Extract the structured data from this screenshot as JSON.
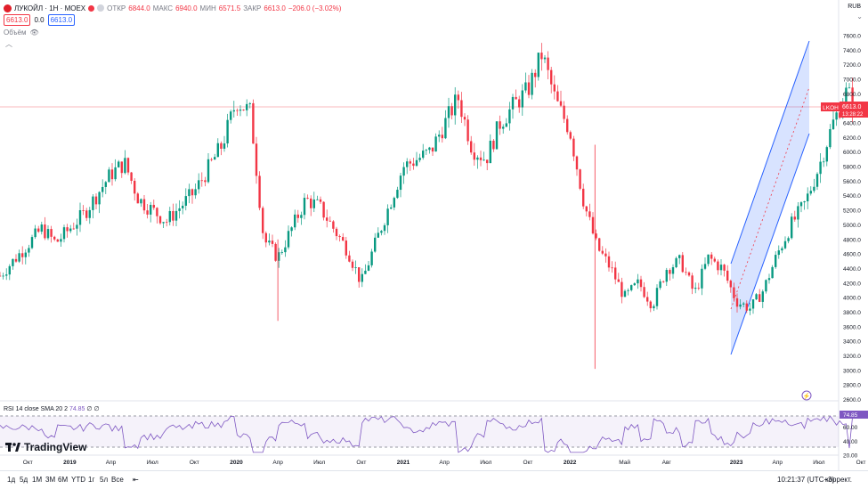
{
  "header": {
    "symbol": "ЛУКОЙЛ · 1Н · MOEX",
    "open_label": "ОТКР",
    "open_value": "6844.0",
    "high_label": "МАКС",
    "high_value": "6940.0",
    "low_label": "МИН",
    "low_value": "6571.5",
    "close_label": "ЗАКР",
    "close_value": "6613.0",
    "change": "−206.0 (−3.02%)",
    "sell_price": "6613.0",
    "spread": "0.0",
    "buy_price": "6613.0",
    "volume_label": "Объём",
    "currency": "RUB"
  },
  "rsi": {
    "label": "RSI 14 close SMA 20 2",
    "value": "74.85",
    "extra": "∅ ∅"
  },
  "brand": {
    "name": "TradingView"
  },
  "toolbar": {
    "ranges": [
      "1д",
      "5д",
      "1М",
      "3М",
      "6М",
      "YTD",
      "1г",
      "5л",
      "Все"
    ],
    "time": "10:21:37 (UTC+3)",
    "adjust": "коррект."
  },
  "chart_data": [
    {
      "type": "candlestick",
      "title": "ЛУКОЙЛ · 1Н · MOEX",
      "ylabel": "RUB",
      "ylim": [
        2600,
        7800
      ],
      "y_ticks": [
        "2600.0",
        "2800.0",
        "3000.0",
        "3200.0",
        "3400.0",
        "3600.0",
        "3800.0",
        "4000.0",
        "4200.0",
        "4400.0",
        "4600.0",
        "4800.0",
        "5000.0",
        "5200.0",
        "5400.0",
        "5600.0",
        "5800.0",
        "6000.0",
        "6200.0",
        "6400.0",
        "6600.0",
        "6800.0",
        "7000.0",
        "7200.0",
        "7400.0",
        "7600.0"
      ],
      "x_ticks": [
        "Окт",
        "2019",
        "Апр",
        "Июл",
        "Окт",
        "2020",
        "Апр",
        "Июл",
        "Окт",
        "2021",
        "Апр",
        "Июл",
        "Окт",
        "2022",
        "Май",
        "Авг",
        "2023",
        "Апр",
        "Июл",
        "Окт"
      ],
      "x_tick_dates": [
        "2018-10",
        "2019-01",
        "2019-04",
        "2019-07",
        "2019-10",
        "2020-01",
        "2020-04",
        "2020-07",
        "2020-10",
        "2021-01",
        "2021-04",
        "2021-07",
        "2021-10",
        "2022-01",
        "2022-05",
        "2022-08",
        "2023-01",
        "2023-04",
        "2023-07",
        "2023-10"
      ],
      "price_path": [
        [
          "2018-08",
          4300
        ],
        [
          "2018-11",
          4950
        ],
        [
          "2018-12",
          4750
        ],
        [
          "2019-02",
          5150
        ],
        [
          "2019-04",
          5700
        ],
        [
          "2019-05",
          5850
        ],
        [
          "2019-06",
          5350
        ],
        [
          "2019-07",
          5200
        ],
        [
          "2019-08",
          5050
        ],
        [
          "2019-10",
          5450
        ],
        [
          "2019-12",
          6100
        ],
        [
          "2020-01",
          6700
        ],
        [
          "2020-02",
          6550
        ],
        [
          "2020-03",
          4800
        ],
        [
          "2020-04",
          4550
        ],
        [
          "2020-06",
          5350
        ],
        [
          "2020-07",
          5250
        ],
        [
          "2020-09",
          4650
        ],
        [
          "2020-10",
          4200
        ],
        [
          "2020-11",
          4750
        ],
        [
          "2021-01",
          5800
        ],
        [
          "2021-03",
          6000
        ],
        [
          "2021-05",
          6750
        ],
        [
          "2021-06",
          6050
        ],
        [
          "2021-07",
          5900
        ],
        [
          "2021-08",
          6400
        ],
        [
          "2021-09",
          6650
        ],
        [
          "2021-10",
          6850
        ],
        [
          "2021-11",
          7350
        ],
        [
          "2021-12",
          6700
        ],
        [
          "2022-01",
          6300
        ],
        [
          "2022-02",
          5300
        ],
        [
          "2022-03",
          4700
        ],
        [
          "2022-04",
          4400
        ],
        [
          "2022-05",
          4000
        ],
        [
          "2022-06",
          4200
        ],
        [
          "2022-07",
          3900
        ],
        [
          "2022-08",
          4400
        ],
        [
          "2022-09",
          4500
        ],
        [
          "2022-10",
          4050
        ],
        [
          "2022-11",
          4550
        ],
        [
          "2022-12",
          4400
        ],
        [
          "2023-01",
          3950
        ],
        [
          "2023-02",
          3850
        ],
        [
          "2023-03",
          4100
        ],
        [
          "2023-04",
          4600
        ],
        [
          "2023-05",
          5000
        ],
        [
          "2023-06",
          5300
        ],
        [
          "2023-07",
          5800
        ],
        [
          "2023-08",
          6400
        ],
        [
          "2023-09",
          6850
        ],
        [
          "2023-09-15",
          6613
        ]
      ],
      "current_price": {
        "label": "LKOH",
        "value": "6613.0",
        "countdown": "13:28:22"
      },
      "channel": {
        "upper": [
          [
            "2023-03",
            4450
          ],
          [
            "2023-10",
            7480
          ]
        ],
        "lower": [
          [
            "2023-03",
            3230
          ],
          [
            "2023-10",
            6260
          ]
        ]
      }
    },
    {
      "type": "line",
      "title": "RSI 14 close SMA 20 2",
      "ylim": [
        20,
        90
      ],
      "y_ticks": [
        "20.00",
        "40.00",
        "60.00",
        "80.00"
      ],
      "bands": [
        30,
        70
      ],
      "last_value": 74.85
    }
  ]
}
